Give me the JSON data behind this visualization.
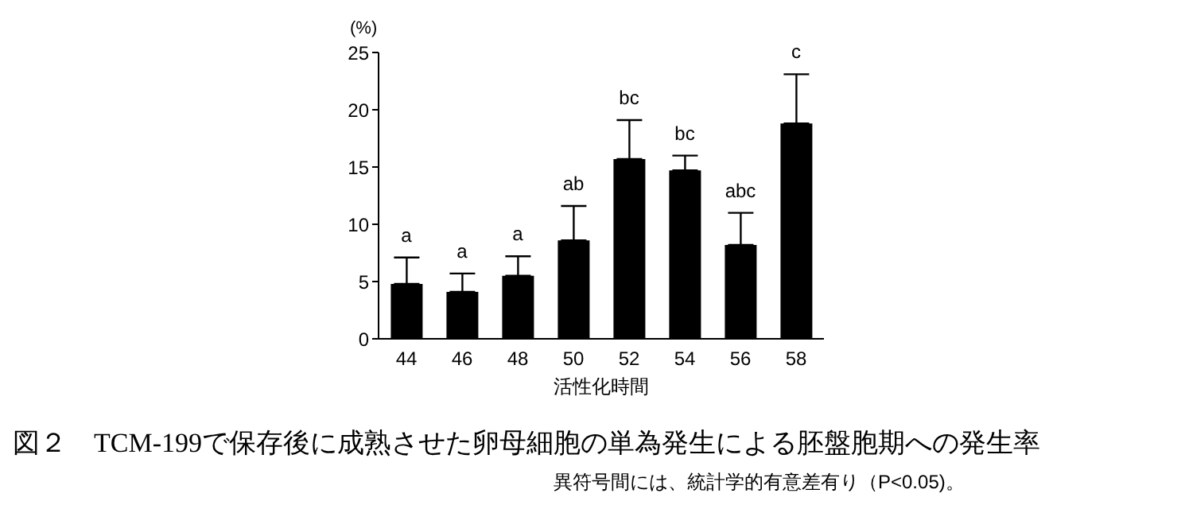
{
  "chart_data": {
    "type": "bar",
    "title": "図２　TCM-199で保存後に成熟させた卵母細胞の単為発生による胚盤胞期への発生率",
    "subtitle": "異符号間には、統計学的有意差有り（P<0.05)。",
    "xlabel": "活性化時間",
    "ylabel": "(%)",
    "categories": [
      "44",
      "46",
      "48",
      "50",
      "52",
      "54",
      "56",
      "58"
    ],
    "values": [
      4.8,
      4.1,
      5.5,
      8.6,
      15.7,
      14.7,
      8.2,
      18.8
    ],
    "errors": [
      [
        4.8,
        7.1
      ],
      [
        4.1,
        5.7
      ],
      [
        5.5,
        7.2
      ],
      [
        8.6,
        11.6
      ],
      [
        15.7,
        19.1
      ],
      [
        14.7,
        16.0
      ],
      [
        8.2,
        11.0
      ],
      [
        18.8,
        23.1
      ]
    ],
    "color": "#000000",
    "ylim": [
      0,
      25
    ],
    "yticks": [
      0,
      5,
      10,
      15,
      20,
      25
    ],
    "grid": false,
    "legend": false,
    "annotations": [
      {
        "text": "a",
        "x": "44",
        "y": 7.1
      },
      {
        "text": "a",
        "x": "46",
        "y": 5.7
      },
      {
        "text": "a",
        "x": "48",
        "y": 7.2
      },
      {
        "text": "ab",
        "x": "50",
        "y": 11.6
      },
      {
        "text": "bc",
        "x": "52",
        "y": 19.1
      },
      {
        "text": "bc",
        "x": "54",
        "y": 16.0
      },
      {
        "text": "abc",
        "x": "56",
        "y": 11.0
      },
      {
        "text": "c",
        "x": "58",
        "y": 23.1
      }
    ]
  }
}
